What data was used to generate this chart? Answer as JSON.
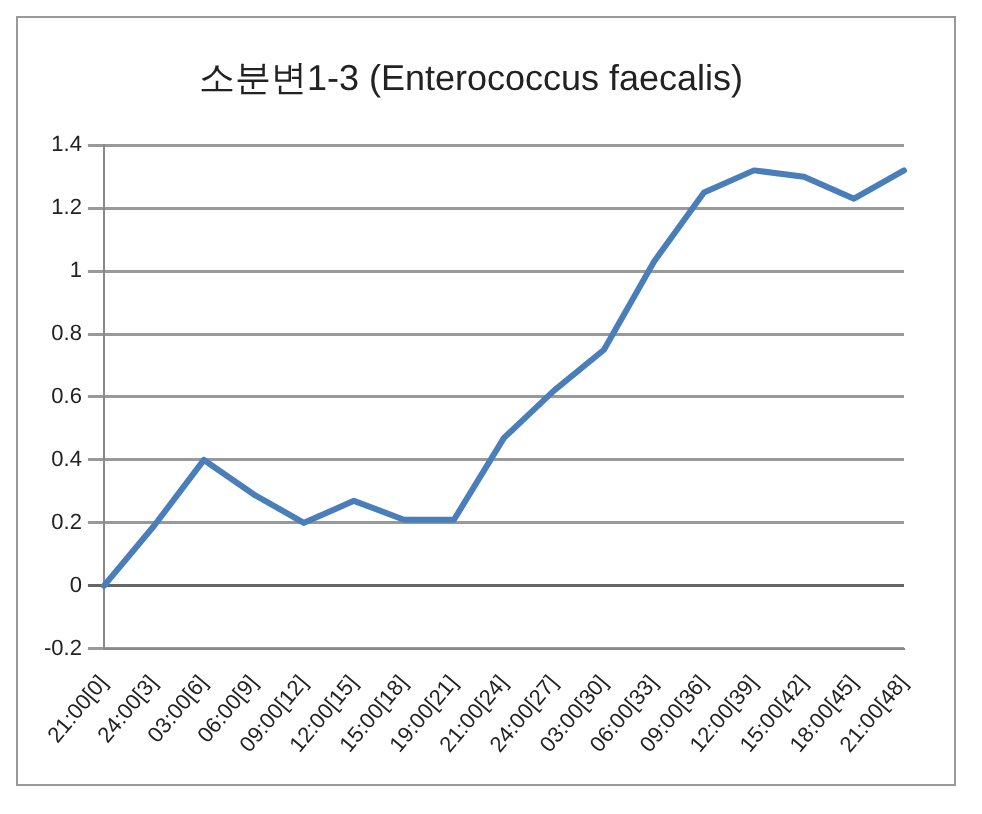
{
  "chart_data": {
    "type": "line",
    "title": "소분변1-3 (Enterococcus faecalis)",
    "categories": [
      "21:00[0]",
      "24:00[3]",
      "03:00[6]",
      "06:00[9]",
      "09:00[12]",
      "12:00[15]",
      "15:00[18]",
      "19:00[21]",
      "21:00[24]",
      "24:00[27]",
      "03:00[30]",
      "06:00[33]",
      "09:00[36]",
      "12:00[39]",
      "15:00[42]",
      "18:00[45]",
      "21:00[48]"
    ],
    "series": [
      {
        "color": "#4a7ebb",
        "values": [
          0,
          0.19,
          0.4,
          0.29,
          0.2,
          0.27,
          0.21,
          0.21,
          0.47,
          0.62,
          0.75,
          1.03,
          1.25,
          1.32,
          1.3,
          1.23,
          1.32
        ]
      }
    ],
    "ylim": [
      -0.2,
      1.4
    ],
    "yticks": [
      -0.2,
      0,
      0.2,
      0.4,
      0.6,
      0.8,
      1,
      1.2,
      1.4
    ],
    "grid": "y",
    "legend": false,
    "marker": "none",
    "line_style": "solid"
  }
}
